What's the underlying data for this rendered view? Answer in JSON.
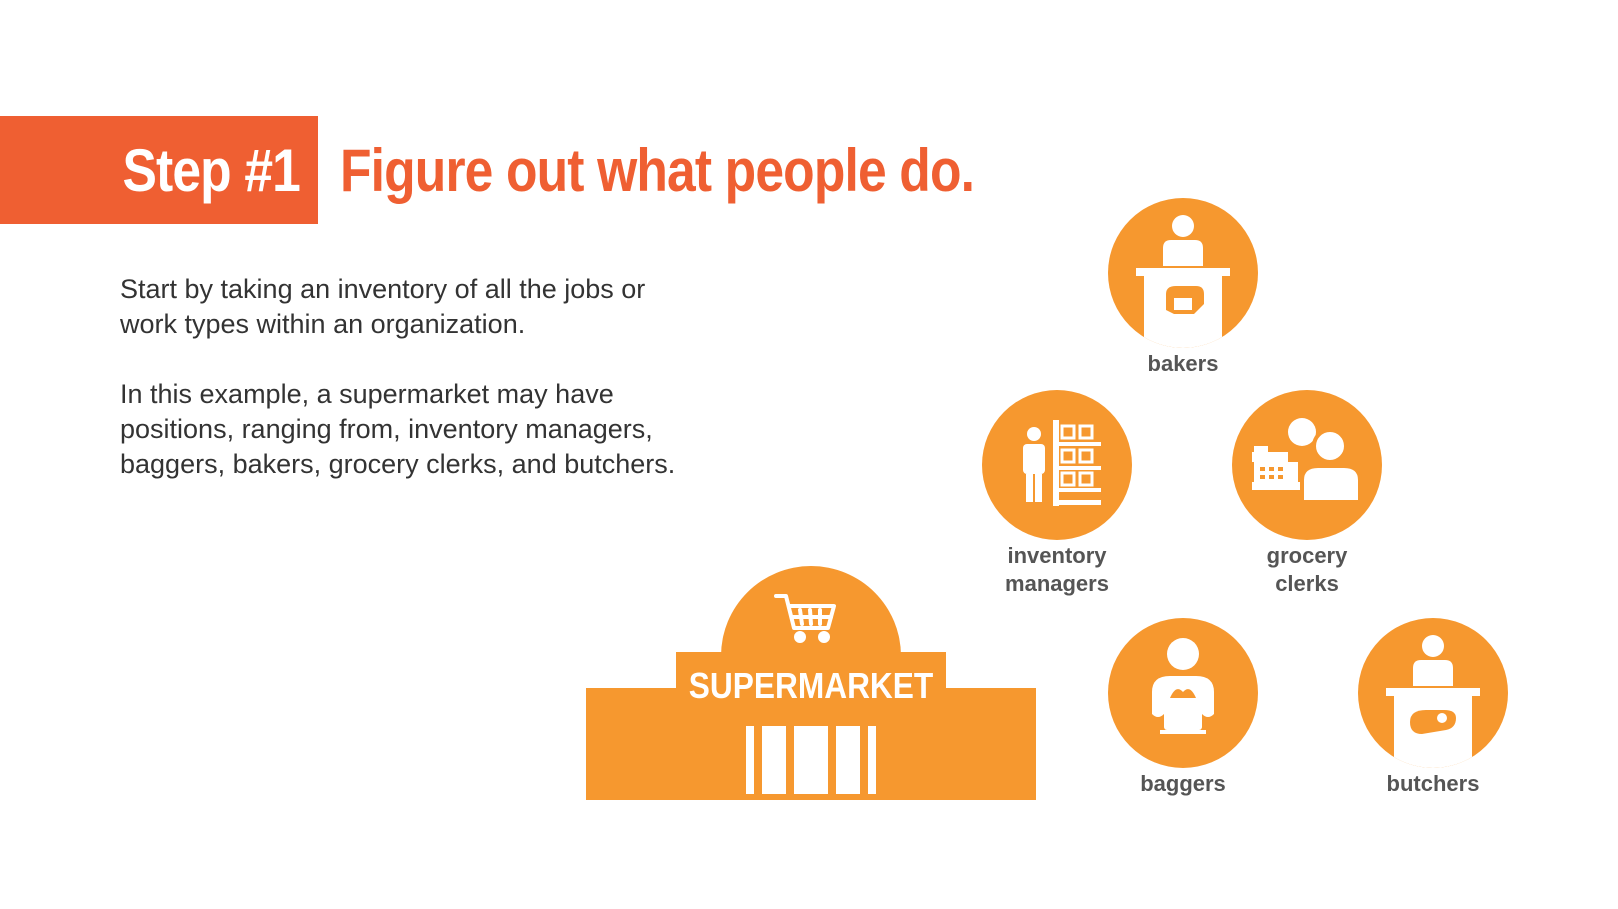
{
  "header": {
    "step": "Step #1",
    "title": "Figure out what people do."
  },
  "body": {
    "paragraph1": "Start by taking an inventory of all the jobs or work types within an organization.",
    "paragraph2": "In this example, a supermarket may have positions, ranging from, inventory managers, baggers, bakers, grocery clerks, and butchers."
  },
  "supermarket": {
    "sign": "SUPERMARKET",
    "icon": "shopping-cart-icon"
  },
  "roles": [
    {
      "label": "bakers",
      "icon": "baker-icon"
    },
    {
      "label": "inventory\nmanagers",
      "icon": "inventory-manager-icon"
    },
    {
      "label": "grocery\nclerks",
      "icon": "grocery-clerk-icon"
    },
    {
      "label": "baggers",
      "icon": "bagger-icon"
    },
    {
      "label": "butchers",
      "icon": "butcher-icon"
    }
  ],
  "colors": {
    "accent_red": "#ef5f32",
    "icon_orange": "#f6982f",
    "text_dark": "#333333",
    "label_gray": "#555555"
  }
}
